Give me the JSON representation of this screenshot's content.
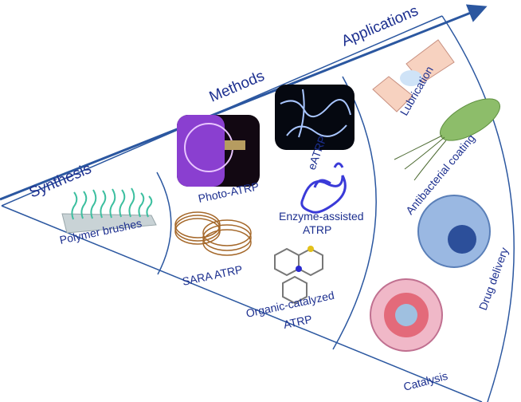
{
  "stages": [
    "Synthesis",
    "Methods",
    "Applications"
  ],
  "synthesis": {
    "items": [
      "Polymer brushes"
    ]
  },
  "methods": {
    "items": [
      "Photo-ATRP",
      "eATRP",
      "Enzyme-assisted",
      "ATRP",
      "SARA ATRP",
      "Organic-catalyzed",
      "ATRP"
    ]
  },
  "applications": {
    "items": [
      "Lubrication",
      "Antibacterial coating",
      "Drug delivery",
      "Catalysis"
    ]
  },
  "colors": {
    "line": "#2b57a0",
    "text": "#1c2f8f"
  }
}
